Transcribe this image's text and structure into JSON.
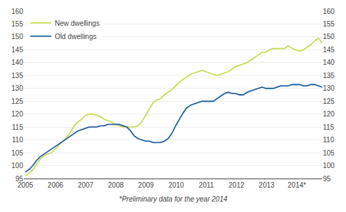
{
  "chart_data": {
    "type": "line",
    "annotations": [
      "*Preliminary data for the year 2014"
    ],
    "x": [
      2005,
      2005.1246,
      2005.2491,
      2005.3737,
      2005.4982,
      2005.6228,
      2005.7473,
      2005.8719,
      2005.9965,
      2006.121,
      2006.2456,
      2006.3701,
      2006.4947,
      2006.6192,
      2006.7438,
      2006.8684,
      2006.9929,
      2007.1175,
      2007.242,
      2007.3666,
      2007.4911,
      2007.6157,
      2007.7403,
      2007.8648,
      2007.9894,
      2008.1139,
      2008.2385,
      2008.363,
      2008.4876,
      2008.6122,
      2008.7367,
      2008.8613,
      2008.9858,
      2009.1104,
      2009.2349,
      2009.3595,
      2009.4841,
      2009.6086,
      2009.7332,
      2009.8577,
      2009.9823,
      2010.1068,
      2010.2314,
      2010.3559,
      2010.4805,
      2010.6051,
      2010.7296,
      2010.8542,
      2010.9787,
      2011.1033,
      2011.2278,
      2011.3524,
      2011.477,
      2011.6015,
      2011.7261,
      2011.8506,
      2011.9752,
      2012.0997,
      2012.2243,
      2012.3489,
      2012.4734,
      2012.598,
      2012.7225,
      2012.8471,
      2012.9716,
      2013.0962,
      2013.2208,
      2013.3453,
      2013.4699,
      2013.5944,
      2013.719,
      2013.8435,
      2013.9681,
      2014.0927,
      2014.2172,
      2014.3418,
      2014.4663,
      2014.5909,
      2014.7154,
      2014.84
    ],
    "series": [
      {
        "name": "New dwellings",
        "color": "#c8dc50",
        "values": [
          96.0,
          97.0,
          98.5,
          100.5,
          102.5,
          104.0,
          104.5,
          105.0,
          106.5,
          108.0,
          109.5,
          111.0,
          113.0,
          115.5,
          117.0,
          118.0,
          119.5,
          120.0,
          120.0,
          119.5,
          119.0,
          118.0,
          117.5,
          117.0,
          116.0,
          115.5,
          115.0,
          115.0,
          115.0,
          115.0,
          115.5,
          117.0,
          119.5,
          122.0,
          124.5,
          125.5,
          126.0,
          127.5,
          128.5,
          129.5,
          131.0,
          132.5,
          133.5,
          134.5,
          135.5,
          136.0,
          136.5,
          137.0,
          136.5,
          136.0,
          135.5,
          135.0,
          135.5,
          136.0,
          136.5,
          137.5,
          138.5,
          139.0,
          139.5,
          140.0,
          141.0,
          142.0,
          143.0,
          144.0,
          144.0,
          145.0,
          145.5,
          145.5,
          145.5,
          145.5,
          146.5,
          145.5,
          145.0,
          144.5,
          145.0,
          146.0,
          147.0,
          148.5,
          149.5,
          147.5
        ]
      },
      {
        "name": "Old dwellings",
        "color": "#2060a0",
        "values": [
          97.5,
          98.5,
          100.0,
          102.0,
          103.5,
          104.5,
          105.5,
          106.5,
          107.5,
          108.5,
          109.5,
          110.5,
          111.5,
          112.5,
          113.5,
          114.0,
          114.5,
          115.0,
          115.0,
          115.0,
          115.5,
          115.5,
          116.0,
          116.0,
          116.0,
          116.0,
          115.5,
          115.0,
          113.5,
          111.5,
          110.5,
          110.0,
          109.5,
          109.5,
          109.0,
          109.0,
          109.0,
          109.5,
          110.5,
          112.5,
          115.5,
          118.0,
          120.5,
          122.5,
          123.5,
          124.0,
          124.5,
          125.0,
          125.0,
          125.0,
          125.0,
          126.0,
          127.0,
          128.0,
          128.5,
          128.0,
          128.0,
          127.5,
          127.5,
          128.5,
          129.0,
          129.5,
          130.0,
          130.5,
          130.0,
          130.0,
          130.0,
          130.5,
          131.0,
          131.0,
          131.0,
          131.5,
          131.5,
          131.5,
          131.0,
          131.0,
          131.5,
          131.5,
          131.0,
          130.5
        ]
      }
    ],
    "xlim": [
      2004.95,
      2014.84
    ],
    "xticks": [
      2005,
      2006,
      2007,
      2008,
      2009,
      2010,
      2011,
      2012,
      2013,
      {
        "value": 2014.0,
        "label": "2014*"
      }
    ],
    "ylim": [
      95,
      160
    ],
    "yticks": [
      95,
      100,
      105,
      110,
      115,
      120,
      125,
      130,
      135,
      140,
      145,
      150,
      155,
      160
    ],
    "y2lim": [
      95,
      160
    ],
    "y2ticks": [
      95,
      100,
      105,
      110,
      115,
      120,
      125,
      130,
      135,
      140,
      145,
      150,
      155,
      160
    ],
    "grid": true,
    "legend": "upper left"
  }
}
